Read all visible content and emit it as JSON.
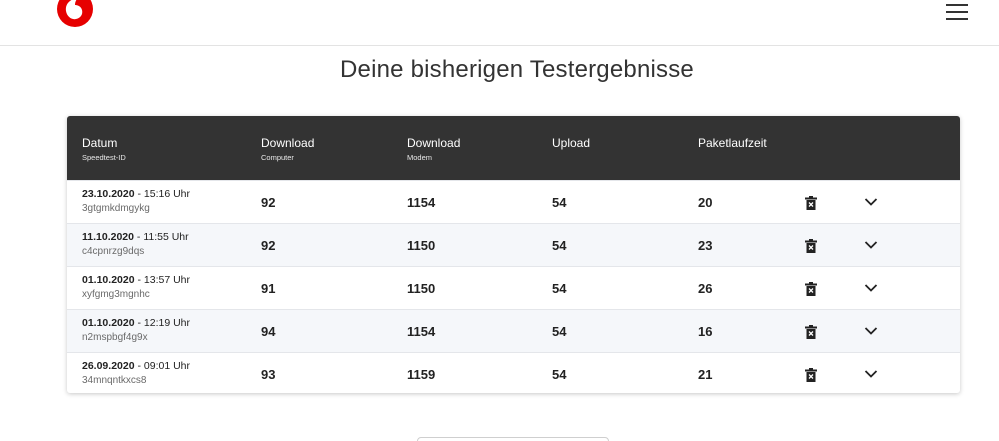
{
  "page": {
    "title": "Deine bisherigen Testergebnisse"
  },
  "colors": {
    "brand": "#e60000",
    "header_bg": "#333333",
    "row_alt": "#f5f7fa"
  },
  "icons": {
    "logo": "vodafone-logo",
    "menu": "hamburger-menu-icon",
    "delete": "trash-icon",
    "expand": "chevron-down-icon"
  },
  "table": {
    "headers": [
      {
        "main": "Datum",
        "sub": "Speedtest-ID"
      },
      {
        "main": "Download",
        "sub": "Computer"
      },
      {
        "main": "Download",
        "sub": "Modem"
      },
      {
        "main": "Upload",
        "sub": ""
      },
      {
        "main": "Paketlaufzeit",
        "sub": ""
      }
    ],
    "rows": [
      {
        "date": "23.10.2020",
        "time": " - 15:16 Uhr",
        "id": "3gtgmkdmgykg",
        "dl_computer": "92",
        "dl_modem": "1154",
        "upload": "54",
        "latency": "20"
      },
      {
        "date": "11.10.2020",
        "time": " - 11:55 Uhr",
        "id": "c4cpnrzg9dqs",
        "dl_computer": "92",
        "dl_modem": "1150",
        "upload": "54",
        "latency": "23"
      },
      {
        "date": "01.10.2020",
        "time": " - 13:57 Uhr",
        "id": "xyfgmg3mgnhc",
        "dl_computer": "91",
        "dl_modem": "1150",
        "upload": "54",
        "latency": "26"
      },
      {
        "date": "01.10.2020",
        "time": " - 12:19 Uhr",
        "id": "n2mspbgf4g9x",
        "dl_computer": "94",
        "dl_modem": "1154",
        "upload": "54",
        "latency": "16"
      },
      {
        "date": "26.09.2020",
        "time": " - 09:01 Uhr",
        "id": "34mnqntkxcs8",
        "dl_computer": "93",
        "dl_modem": "1159",
        "upload": "54",
        "latency": "21"
      }
    ]
  }
}
